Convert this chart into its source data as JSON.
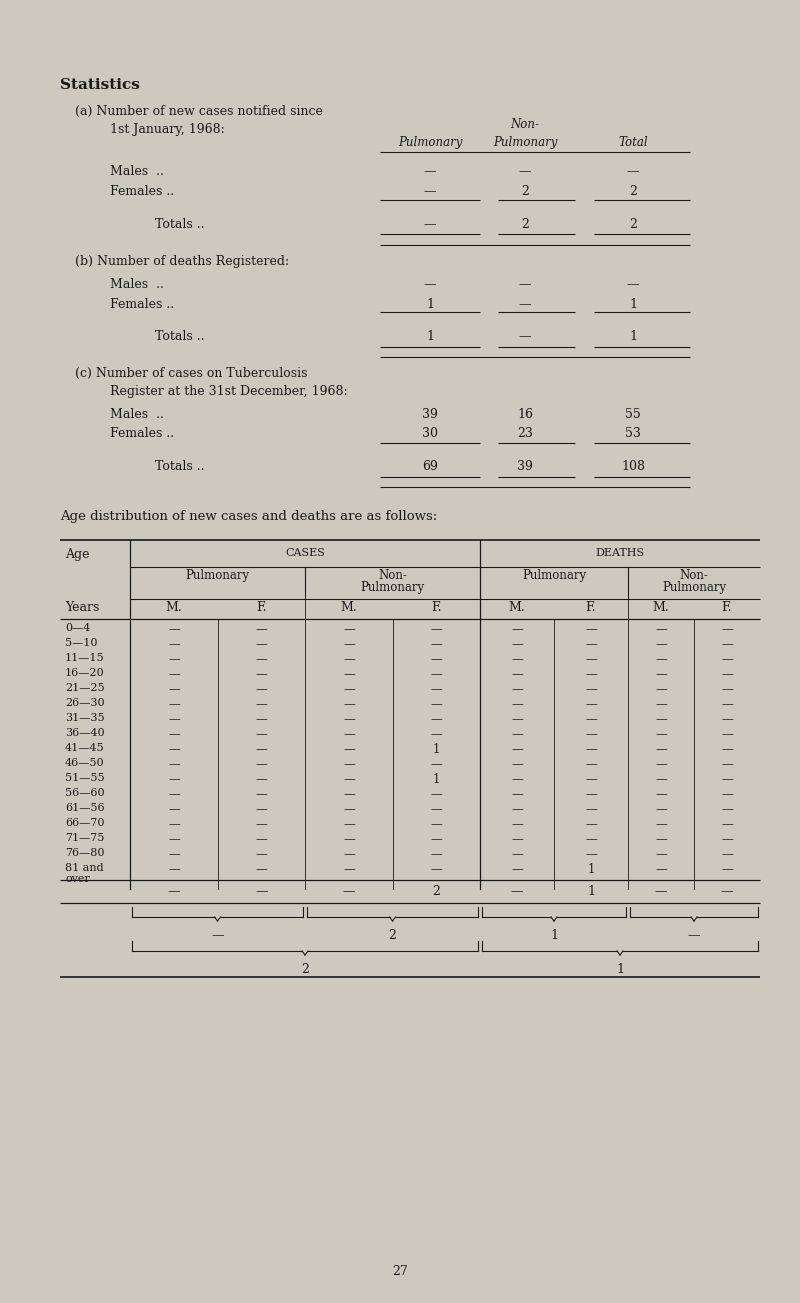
{
  "bg_color": "#cdc9be",
  "text_color": "#1a1a1a",
  "title": "Statistics",
  "section_a": {
    "Males": [
      "—",
      "—",
      "—"
    ],
    "Females": [
      "—",
      "2",
      "2"
    ],
    "Totals": [
      "—",
      "2",
      "2"
    ]
  },
  "section_b": {
    "Males": [
      "—",
      "—",
      "—"
    ],
    "Females": [
      "1",
      "—",
      "1"
    ],
    "Totals": [
      "1",
      "—",
      "1"
    ]
  },
  "section_c": {
    "Males": [
      "39",
      "16",
      "55"
    ],
    "Females": [
      "30",
      "23",
      "53"
    ],
    "Totals": [
      "69",
      "39",
      "108"
    ]
  },
  "age_rows": [
    "0—4",
    "5—10",
    "11—15",
    "16—20",
    "21—25",
    "26—30",
    "31—35",
    "36—40",
    "41—45",
    "46—50",
    "51—55",
    "56—60",
    "61—56",
    "66—70",
    "71—75",
    "76—80",
    "81 and over"
  ],
  "table_data": {
    "cases_pulm_M": [
      "—",
      "—",
      "—",
      "—",
      "—",
      "—",
      "—",
      "—",
      "—",
      "—",
      "—",
      "—",
      "—",
      "—",
      "—",
      "—",
      "—"
    ],
    "cases_pulm_F": [
      "—",
      "—",
      "—",
      "—",
      "—",
      "—",
      "—",
      "—",
      "—",
      "—",
      "—",
      "—",
      "—",
      "—",
      "—",
      "—",
      "—"
    ],
    "cases_nonpulm_M": [
      "—",
      "—",
      "—",
      "—",
      "—",
      "—",
      "—",
      "—",
      "—",
      "—",
      "—",
      "—",
      "—",
      "—",
      "—",
      "—",
      "—"
    ],
    "cases_nonpulm_F": [
      "—",
      "—",
      "—",
      "—",
      "—",
      "—",
      "—",
      "—",
      "1",
      "—",
      "1",
      "—",
      "—",
      "—",
      "—",
      "—",
      "—"
    ],
    "deaths_pulm_M": [
      "—",
      "—",
      "—",
      "—",
      "—",
      "—",
      "—",
      "—",
      "—",
      "—",
      "—",
      "—",
      "—",
      "—",
      "—",
      "—",
      "—"
    ],
    "deaths_pulm_F": [
      "—",
      "—",
      "—",
      "—",
      "—",
      "—",
      "—",
      "—",
      "—",
      "—",
      "—",
      "—",
      "—",
      "—",
      "—",
      "—",
      "1"
    ],
    "deaths_nonpulm_M": [
      "—",
      "—",
      "—",
      "—",
      "—",
      "—",
      "—",
      "—",
      "—",
      "—",
      "—",
      "—",
      "—",
      "—",
      "—",
      "—",
      "—"
    ],
    "deaths_nonpulm_F": [
      "—",
      "—",
      "—",
      "—",
      "—",
      "—",
      "—",
      "—",
      "—",
      "—",
      "—",
      "—",
      "—",
      "—",
      "—",
      "—",
      "—"
    ]
  },
  "totals_row": [
    "—",
    "—",
    "—",
    "2",
    "—",
    "1",
    "—",
    "—"
  ],
  "brace_cases_pulm": "—",
  "brace_cases_nonpulm": "2",
  "brace_cases_total": "2",
  "brace_deaths_pulm": "1",
  "brace_deaths_nonpulm": "—",
  "brace_deaths_total": "1",
  "page_number": "27"
}
